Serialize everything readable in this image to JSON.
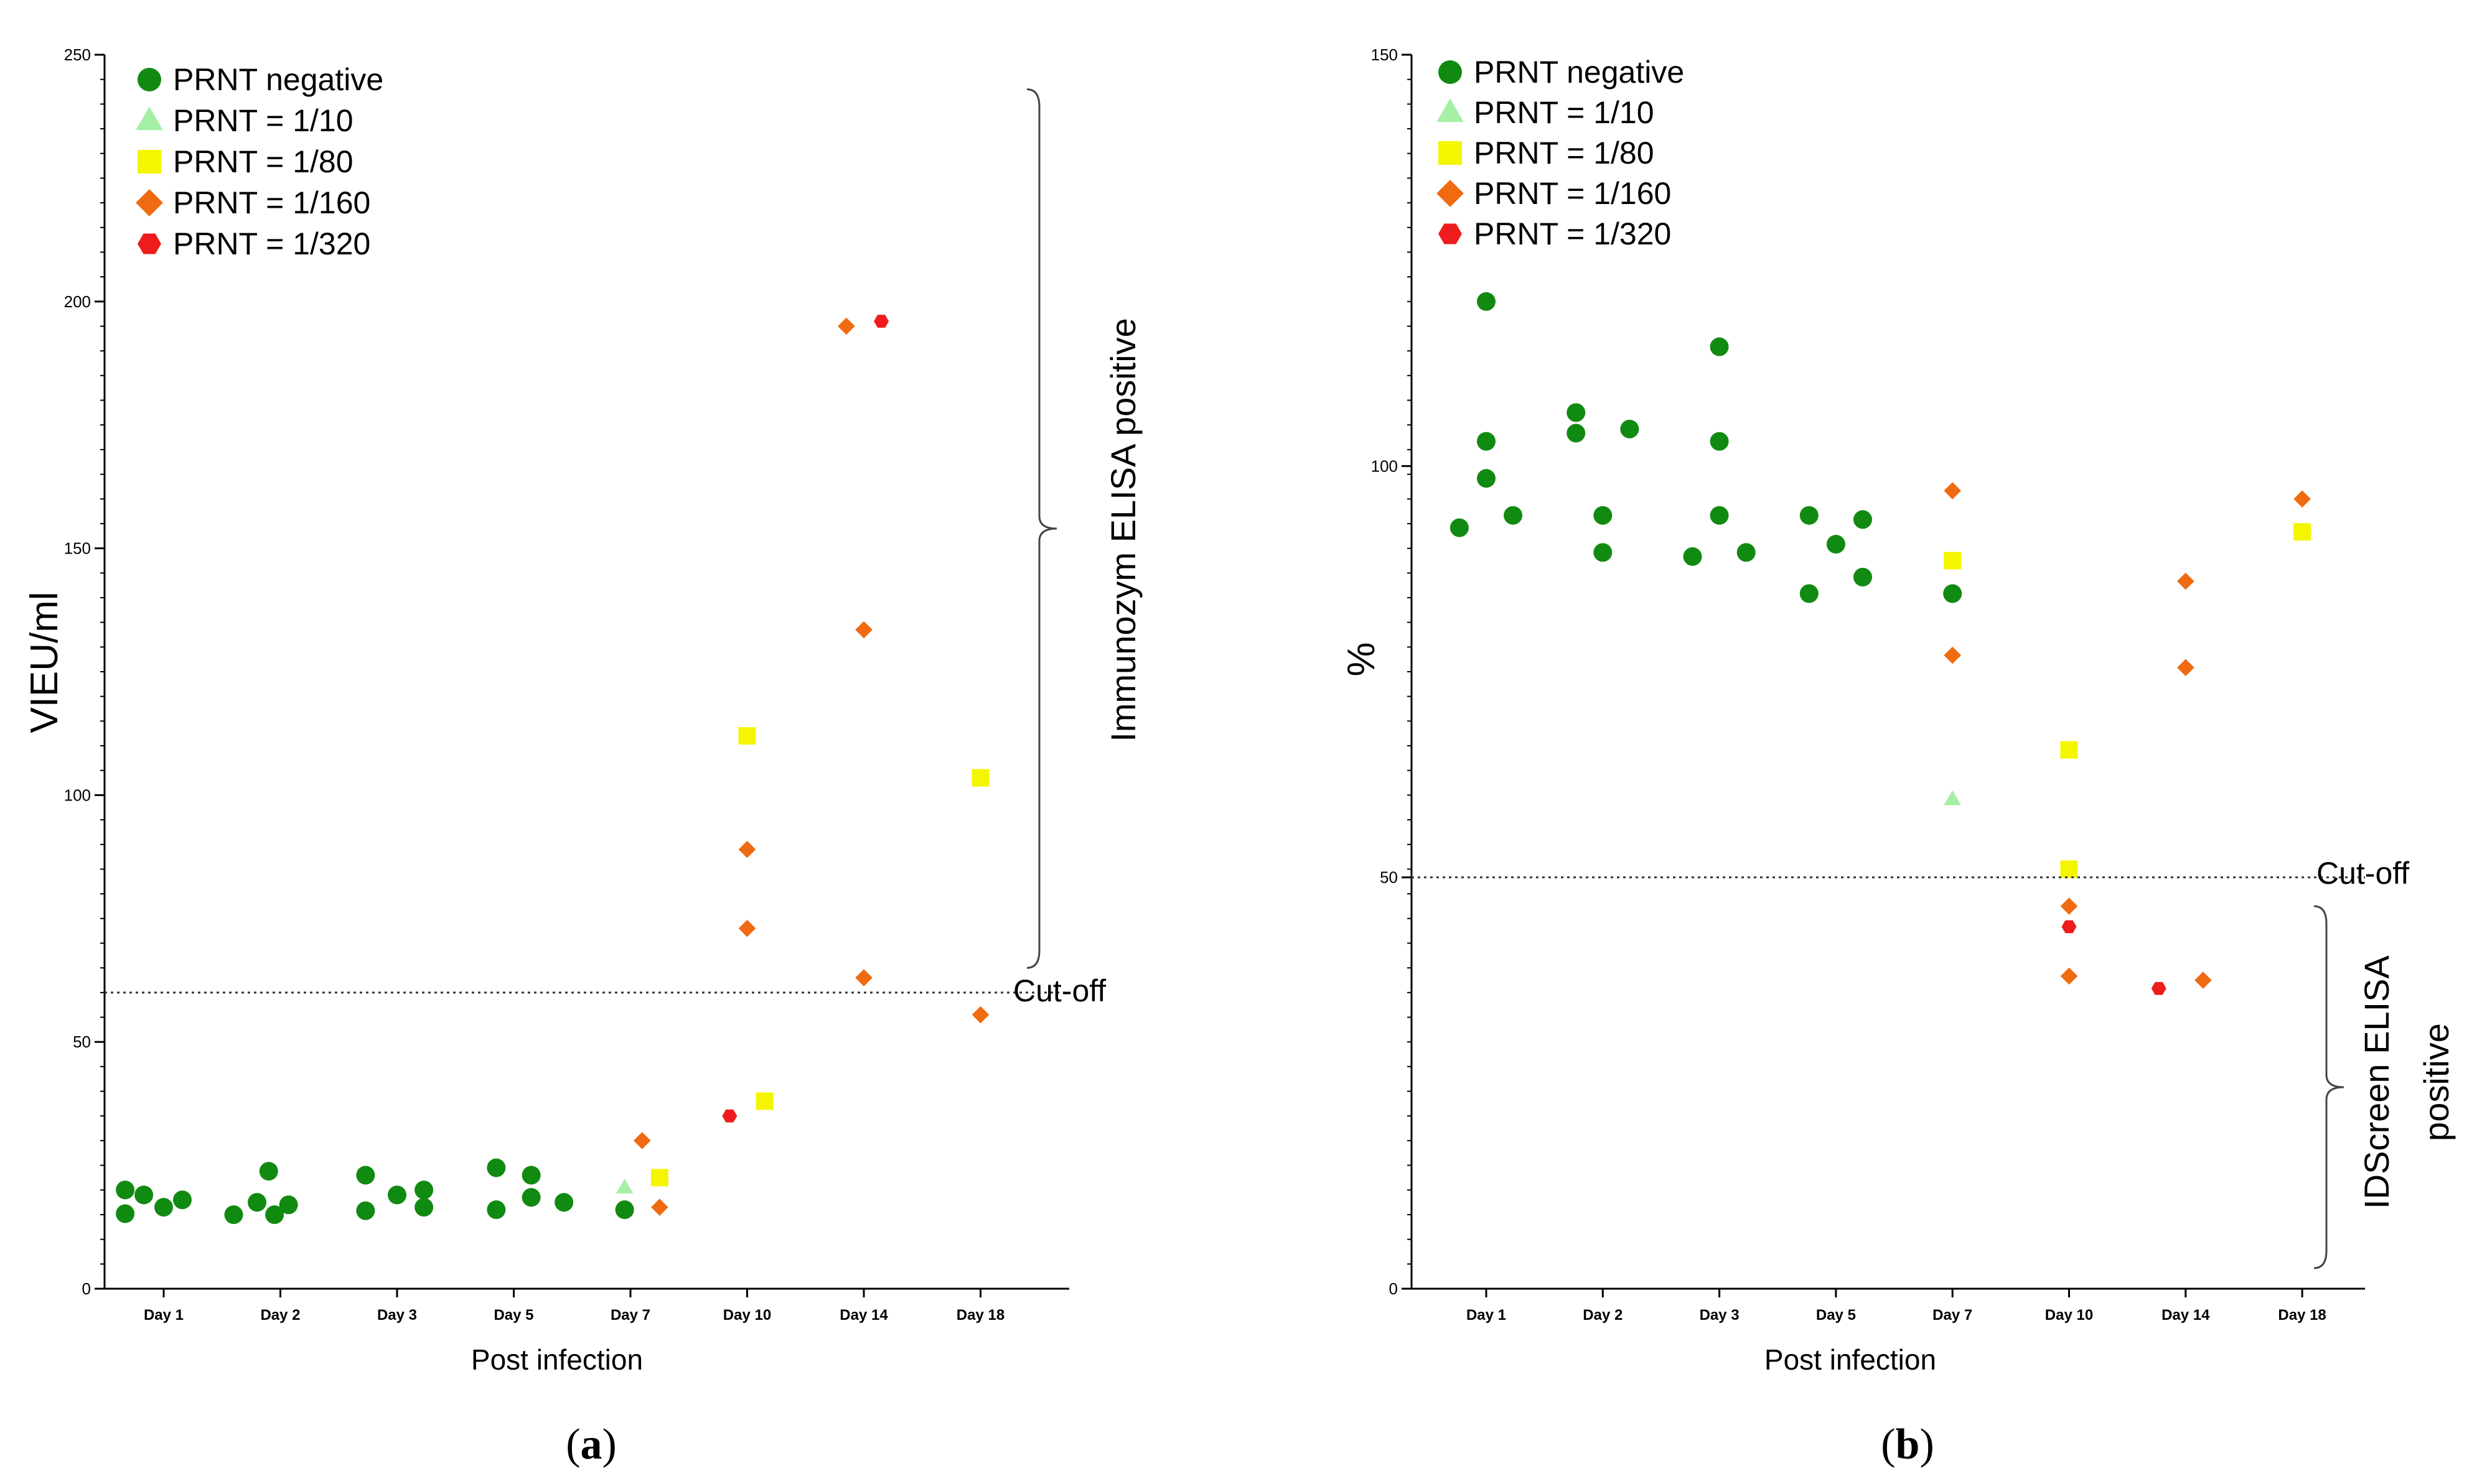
{
  "colors": {
    "PRNT negative": "#118a11",
    "PRNT = 1/10": "#a6efa6",
    "PRNT = 1/80": "#f5f500",
    "PRNT = 1/160": "#ef6a10",
    "PRNT = 1/320": "#ee1c1c"
  },
  "legend_shapes": {
    "PRNT negative": "circle",
    "PRNT = 1/10": "triangle",
    "PRNT = 1/80": "square",
    "PRNT = 1/160": "diamond",
    "PRNT = 1/320": "hexagon"
  },
  "chart_data": [
    {
      "id": "a",
      "type": "scatter",
      "caption_open": "(",
      "caption_letter": "a",
      "caption_close": ")",
      "xlabel": "Post infection",
      "ylabel": "VIEU/ml",
      "ylim": [
        0,
        250
      ],
      "yticks": [
        0,
        50,
        100,
        150,
        200,
        250
      ],
      "categories": [
        "Day 1",
        "Day 2",
        "Day 3",
        "Day 5",
        "Day 7",
        "Day 10",
        "Day 14",
        "Day 18"
      ],
      "legend": [
        "PRNT negative",
        "PRNT = 1/10",
        "PRNT = 1/80",
        "PRNT = 1/160",
        "PRNT = 1/320"
      ],
      "legend_position": "top-left",
      "cutoff": {
        "value": 60,
        "label": "Cut-off"
      },
      "bracket": {
        "label": "Immunozym ELISA positive",
        "from": 65,
        "to": 243
      },
      "series": [
        {
          "name": "PRNT negative",
          "points": [
            {
              "x": "Day 1",
              "dx": -0.33,
              "y": 20
            },
            {
              "x": "Day 1",
              "dx": -0.17,
              "y": 19
            },
            {
              "x": "Day 1",
              "dx": 0,
              "y": 16.5
            },
            {
              "x": "Day 1",
              "dx": 0.16,
              "y": 18
            },
            {
              "x": "Day 1",
              "dx": -0.33,
              "y": 15.2
            },
            {
              "x": "Day 2",
              "dx": -0.1,
              "y": 23.8
            },
            {
              "x": "Day 2",
              "dx": -0.2,
              "y": 17.5
            },
            {
              "x": "Day 2",
              "dx": 0.07,
              "y": 17
            },
            {
              "x": "Day 2",
              "dx": -0.05,
              "y": 15
            },
            {
              "x": "Day 2",
              "dx": -0.4,
              "y": 15
            },
            {
              "x": "Day 3",
              "dx": -0.27,
              "y": 23
            },
            {
              "x": "Day 3",
              "dx": 0,
              "y": 19
            },
            {
              "x": "Day 3",
              "dx": 0.23,
              "y": 20
            },
            {
              "x": "Day 3",
              "dx": 0.23,
              "y": 16.5
            },
            {
              "x": "Day 3",
              "dx": -0.27,
              "y": 15.8
            },
            {
              "x": "Day 5",
              "dx": -0.15,
              "y": 24.5
            },
            {
              "x": "Day 5",
              "dx": 0.15,
              "y": 23
            },
            {
              "x": "Day 5",
              "dx": 0.15,
              "y": 18.5
            },
            {
              "x": "Day 5",
              "dx": -0.15,
              "y": 16
            },
            {
              "x": "Day 5",
              "dx": 0.43,
              "y": 17.5
            },
            {
              "x": "Day 7",
              "dx": -0.05,
              "y": 16
            }
          ]
        },
        {
          "name": "PRNT = 1/10",
          "points": [
            {
              "x": "Day 7",
              "dx": -0.05,
              "y": 20.5
            }
          ]
        },
        {
          "name": "PRNT = 1/80",
          "points": [
            {
              "x": "Day 7",
              "dx": 0.25,
              "y": 22.5
            },
            {
              "x": "Day 10",
              "dx": 0,
              "y": 112
            },
            {
              "x": "Day 10",
              "dx": 0.15,
              "y": 38
            },
            {
              "x": "Day 18",
              "dx": 0,
              "y": 103.5
            }
          ]
        },
        {
          "name": "PRNT = 1/160",
          "points": [
            {
              "x": "Day 7",
              "dx": 0.1,
              "y": 30
            },
            {
              "x": "Day 7",
              "dx": 0.25,
              "y": 16.5
            },
            {
              "x": "Day 10",
              "dx": 0,
              "y": 89
            },
            {
              "x": "Day 10",
              "dx": 0,
              "y": 73
            },
            {
              "x": "Day 14",
              "dx": -0.15,
              "y": 195
            },
            {
              "x": "Day 14",
              "dx": 0,
              "y": 133.5
            },
            {
              "x": "Day 14",
              "dx": 0,
              "y": 63
            },
            {
              "x": "Day 18",
              "dx": 0,
              "y": 55.5
            }
          ]
        },
        {
          "name": "PRNT = 1/320",
          "points": [
            {
              "x": "Day 10",
              "dx": -0.15,
              "y": 35
            },
            {
              "x": "Day 14",
              "dx": 0.15,
              "y": 196
            }
          ]
        }
      ]
    },
    {
      "id": "b",
      "type": "scatter",
      "caption_open": "(",
      "caption_letter": "b",
      "caption_close": ")",
      "xlabel": "Post infection",
      "ylabel": "%",
      "ylim": [
        0,
        150
      ],
      "yticks": [
        0,
        50,
        100,
        150
      ],
      "categories": [
        "Day 1",
        "Day 2",
        "Day 3",
        "Day 5",
        "Day 7",
        "Day 10",
        "Day 14",
        "Day 18"
      ],
      "legend": [
        "PRNT negative",
        "PRNT = 1/10",
        "PRNT = 1/80",
        "PRNT = 1/160",
        "PRNT = 1/320"
      ],
      "legend_position": "top-left",
      "cutoff": {
        "value": 50,
        "label": "Cut-off"
      },
      "bracket": {
        "label_lines": [
          "IDScreen ELISA",
          "positive"
        ],
        "from": 2.5,
        "to": 46.5
      },
      "series": [
        {
          "name": "PRNT negative",
          "points": [
            {
              "x": "Day 1",
              "dx": 0,
              "y": 120
            },
            {
              "x": "Day 1",
              "dx": 0,
              "y": 103
            },
            {
              "x": "Day 1",
              "dx": 0,
              "y": 98.5
            },
            {
              "x": "Day 1",
              "dx": -0.23,
              "y": 92.5
            },
            {
              "x": "Day 1",
              "dx": 0.23,
              "y": 94
            },
            {
              "x": "Day 2",
              "dx": -0.23,
              "y": 106.5
            },
            {
              "x": "Day 2",
              "dx": -0.23,
              "y": 104
            },
            {
              "x": "Day 2",
              "dx": 0.23,
              "y": 104.5
            },
            {
              "x": "Day 2",
              "dx": 0,
              "y": 94
            },
            {
              "x": "Day 2",
              "dx": 0,
              "y": 89.5
            },
            {
              "x": "Day 3",
              "dx": 0,
              "y": 114.5
            },
            {
              "x": "Day 3",
              "dx": 0,
              "y": 103
            },
            {
              "x": "Day 3",
              "dx": 0,
              "y": 94
            },
            {
              "x": "Day 3",
              "dx": -0.23,
              "y": 89
            },
            {
              "x": "Day 3",
              "dx": 0.23,
              "y": 89.5
            },
            {
              "x": "Day 5",
              "dx": -0.23,
              "y": 94
            },
            {
              "x": "Day 5",
              "dx": 0.23,
              "y": 93.5
            },
            {
              "x": "Day 5",
              "dx": 0,
              "y": 90.5
            },
            {
              "x": "Day 5",
              "dx": 0.23,
              "y": 86.5
            },
            {
              "x": "Day 5",
              "dx": -0.23,
              "y": 84.5
            },
            {
              "x": "Day 7",
              "dx": 0,
              "y": 84.5
            }
          ]
        },
        {
          "name": "PRNT = 1/10",
          "points": [
            {
              "x": "Day 7",
              "dx": 0,
              "y": 59.5
            }
          ]
        },
        {
          "name": "PRNT = 1/80",
          "points": [
            {
              "x": "Day 7",
              "dx": 0,
              "y": 88.5
            },
            {
              "x": "Day 10",
              "dx": 0,
              "y": 65.5
            },
            {
              "x": "Day 10",
              "dx": 0,
              "y": 51
            },
            {
              "x": "Day 18",
              "dx": 0,
              "y": 92
            }
          ]
        },
        {
          "name": "PRNT = 1/160",
          "points": [
            {
              "x": "Day 7",
              "dx": 0,
              "y": 97
            },
            {
              "x": "Day 7",
              "dx": 0,
              "y": 77
            },
            {
              "x": "Day 10",
              "dx": 0,
              "y": 46.5
            },
            {
              "x": "Day 10",
              "dx": 0,
              "y": 38
            },
            {
              "x": "Day 14",
              "dx": 0,
              "y": 86
            },
            {
              "x": "Day 14",
              "dx": 0,
              "y": 75.5
            },
            {
              "x": "Day 14",
              "dx": 0.15,
              "y": 37.5
            },
            {
              "x": "Day 18",
              "dx": 0,
              "y": 96
            }
          ]
        },
        {
          "name": "PRNT = 1/320",
          "points": [
            {
              "x": "Day 10",
              "dx": 0,
              "y": 44
            },
            {
              "x": "Day 14",
              "dx": -0.23,
              "y": 36.5
            }
          ]
        }
      ]
    }
  ]
}
